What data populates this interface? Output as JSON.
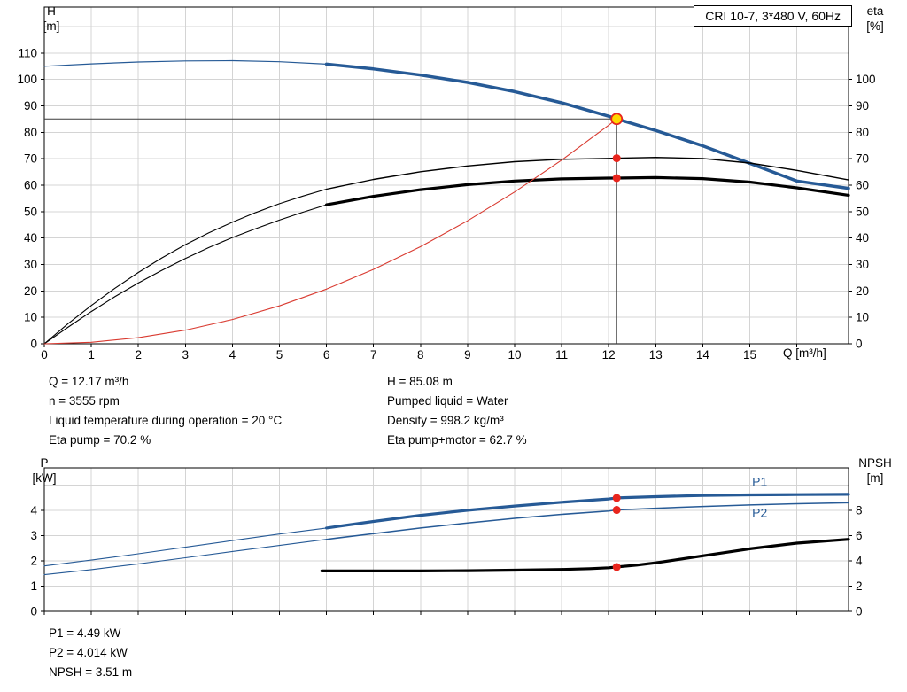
{
  "title_box": {
    "label": "CRI 10-7, 3*480 V, 60Hz"
  },
  "colors": {
    "blue": "#265a96",
    "black": "#000000",
    "red": "#e8251d",
    "red_line": "#d93a30",
    "yellow": "#ffd800",
    "grid": "#d4d4d4",
    "crosshair": "#3a3a3a"
  },
  "top_info": {
    "left": [
      "Q = 12.17 m³/h",
      "n = 3555 rpm",
      "Liquid temperature during operation = 20 °C",
      "Eta pump = 70.2 %"
    ],
    "right": [
      "H = 85.08 m",
      "Pumped liquid = Water",
      "Density = 998.2 kg/m³",
      "Eta pump+motor = 62.7 %"
    ]
  },
  "bottom_info": [
    "P1 = 4.49 kW",
    "P2 = 4.014 kW",
    "NPSH = 3.51 m"
  ],
  "chart_data": [
    {
      "name": "qh-eta-chart",
      "type": "line",
      "title": "CRI 10-7, 3*480 V, 60Hz",
      "x_axis": {
        "label": "Q [m³/h]",
        "min": 0,
        "max": 17.1,
        "ticks": [
          0,
          1,
          2,
          3,
          4,
          5,
          6,
          7,
          8,
          9,
          10,
          11,
          12,
          13,
          14,
          15
        ],
        "grid": [
          1,
          2,
          3,
          4,
          5,
          6,
          7,
          8,
          9,
          10,
          11,
          12,
          13,
          14,
          15,
          16
        ]
      },
      "y_left": {
        "label": "H [m]",
        "label_lines": [
          "H",
          "[m]"
        ],
        "min": 0,
        "max": 127.4,
        "ticks": [
          0,
          10,
          20,
          30,
          40,
          50,
          60,
          70,
          80,
          90,
          100,
          110
        ],
        "grid": [
          10,
          20,
          30,
          40,
          50,
          60,
          70,
          80,
          90,
          100,
          110,
          120
        ]
      },
      "y_right": {
        "label": "eta [%]",
        "label_lines": [
          "eta",
          "[%]"
        ],
        "min": 0,
        "max": 127.4,
        "ticks": [
          0,
          10,
          20,
          30,
          40,
          50,
          60,
          70,
          80,
          90,
          100
        ]
      },
      "series": [
        {
          "name": "pump-curve-low-flow",
          "color": "blue",
          "width": 1.2,
          "axis": "left",
          "x": [
            0,
            1,
            2,
            3,
            4,
            5,
            6
          ],
          "y": [
            105,
            105.9,
            106.6,
            107,
            107.1,
            106.7,
            105.8
          ]
        },
        {
          "name": "pump-curve",
          "color": "blue",
          "width": 3.5,
          "axis": "left",
          "x": [
            6,
            7,
            8,
            9,
            10,
            11,
            12,
            12.17,
            13,
            14,
            15,
            16,
            17.1
          ],
          "y": [
            105.8,
            104,
            101.7,
            98.9,
            95.4,
            91.2,
            86.1,
            85.08,
            80.7,
            74.9,
            68.3,
            61.6,
            58.8
          ]
        },
        {
          "name": "eta-pump-curve-low-flow",
          "color": "black",
          "width": 1.1,
          "axis": "right",
          "x": [
            0,
            0.5,
            1,
            1.5,
            2,
            2.5,
            3,
            3.5,
            4,
            4.5,
            5,
            5.5,
            6
          ],
          "y": [
            0,
            7.5,
            14.5,
            21,
            27,
            32.5,
            37.5,
            42,
            46,
            49.7,
            53,
            55.9,
            58.5
          ]
        },
        {
          "name": "eta-pump-curve",
          "color": "black",
          "width": 1.4,
          "axis": "right",
          "x": [
            6,
            7,
            8,
            9,
            10,
            11,
            12,
            12.17,
            13,
            14,
            15,
            16,
            17.1
          ],
          "y": [
            58.5,
            62.2,
            65.1,
            67.3,
            68.9,
            69.8,
            70.15,
            70.2,
            70.5,
            70.1,
            68.4,
            65.6,
            62
          ]
        },
        {
          "name": "eta-total-curve-low-flow",
          "color": "black",
          "width": 1.1,
          "axis": "right",
          "x": [
            0,
            0.5,
            1,
            1.5,
            2,
            2.5,
            3,
            3.5,
            4,
            4.5,
            5,
            5.5,
            6
          ],
          "y": [
            0,
            6.2,
            12.2,
            17.8,
            23,
            27.8,
            32.3,
            36.4,
            40.2,
            43.6,
            46.8,
            49.8,
            52.6
          ]
        },
        {
          "name": "eta-total-curve",
          "color": "black",
          "width": 3.2,
          "axis": "right",
          "x": [
            6,
            7,
            8,
            9,
            10,
            11,
            12,
            12.17,
            13,
            14,
            15,
            16,
            17.1
          ],
          "y": [
            52.6,
            55.8,
            58.3,
            60.2,
            61.6,
            62.4,
            62.68,
            62.7,
            62.9,
            62.5,
            61.2,
            59,
            56.2
          ]
        },
        {
          "name": "system-curve",
          "color": "red_line",
          "width": 1.1,
          "axis": "left",
          "x": [
            0,
            1,
            2,
            3,
            4,
            5,
            6,
            7,
            8,
            9,
            10,
            11,
            12,
            12.17
          ],
          "y": [
            0,
            0.57,
            2.3,
            5.17,
            9.19,
            14.36,
            20.68,
            28.15,
            36.76,
            46.53,
            57.44,
            69.51,
            82.72,
            85.08
          ]
        }
      ],
      "crosshair": {
        "q": 12.17,
        "h": 85.08,
        "v_from": 0,
        "v_to": 87.5
      },
      "markers": [
        {
          "name": "eta-pump-duty-marker",
          "q": 12.17,
          "v": 70.2,
          "axis": "right",
          "r": 4.5,
          "fill": "red"
        },
        {
          "name": "eta-total-duty-marker",
          "q": 12.17,
          "v": 62.7,
          "axis": "right",
          "r": 4.5,
          "fill": "red"
        },
        {
          "name": "duty-point",
          "q": 12.17,
          "v": 85.08,
          "axis": "left",
          "r": 6,
          "fill": "yellow",
          "stroke": "red"
        }
      ],
      "curve_labels": []
    },
    {
      "name": "power-npsh-chart",
      "type": "line",
      "x_axis": {
        "label": "",
        "min": 0,
        "max": 17.1,
        "ticks": [],
        "grid": [
          1,
          2,
          3,
          4,
          5,
          6,
          7,
          8,
          9,
          10,
          11,
          12,
          13,
          14,
          15,
          16
        ]
      },
      "y_left": {
        "label": "P [kW]",
        "label_lines": [
          "P",
          "[kW]"
        ],
        "min": 0,
        "max": 5.68,
        "ticks": [
          0,
          1,
          2,
          3,
          4
        ],
        "grid": [
          1,
          2,
          3,
          4,
          5
        ]
      },
      "y_right": {
        "label": "NPSH [m]",
        "label_lines": [
          "NPSH",
          "[m]"
        ],
        "min": 0,
        "max": 11.36,
        "ticks": [
          0,
          2,
          4,
          6,
          8
        ]
      },
      "series": [
        {
          "name": "p1-curve-low-flow",
          "color": "blue",
          "width": 1.1,
          "axis": "left",
          "x": [
            0,
            1,
            2,
            3,
            4,
            5,
            6
          ],
          "y": [
            1.8,
            2.03,
            2.28,
            2.54,
            2.8,
            3.06,
            3.3
          ]
        },
        {
          "name": "p1-curve",
          "color": "blue",
          "width": 3.2,
          "axis": "left",
          "x": [
            6,
            7,
            8,
            9,
            10,
            11,
            12,
            12.17,
            13,
            14,
            15,
            16,
            17.1
          ],
          "y": [
            3.3,
            3.56,
            3.8,
            4.0,
            4.17,
            4.32,
            4.45,
            4.49,
            4.54,
            4.59,
            4.61,
            4.62,
            4.63
          ]
        },
        {
          "name": "p2-curve-low-flow",
          "color": "blue",
          "width": 1.1,
          "axis": "left",
          "x": [
            0,
            1,
            2,
            3,
            4,
            5,
            6
          ],
          "y": [
            1.45,
            1.65,
            1.88,
            2.12,
            2.37,
            2.61,
            2.85
          ]
        },
        {
          "name": "p2-curve",
          "color": "blue",
          "width": 1.5,
          "axis": "left",
          "x": [
            6,
            7,
            8,
            9,
            10,
            11,
            12,
            12.17,
            13,
            14,
            15,
            16,
            17.1
          ],
          "y": [
            2.85,
            3.08,
            3.3,
            3.5,
            3.68,
            3.84,
            3.97,
            4.014,
            4.08,
            4.15,
            4.21,
            4.26,
            4.3
          ]
        },
        {
          "name": "npsh-curve",
          "color": "black",
          "width": 3.2,
          "axis": "right",
          "x": [
            5.9,
            7,
            8,
            9,
            10,
            11,
            11.6,
            12,
            12.17,
            12.6,
            13,
            14,
            15,
            16,
            17.1
          ],
          "y": [
            3.2,
            3.2,
            3.2,
            3.22,
            3.26,
            3.32,
            3.38,
            3.45,
            3.51,
            3.66,
            3.84,
            4.4,
            4.95,
            5.4,
            5.7
          ]
        }
      ],
      "markers": [
        {
          "name": "p1-duty-marker",
          "q": 12.17,
          "v": 4.49,
          "axis": "left",
          "r": 4.5,
          "fill": "red"
        },
        {
          "name": "p2-duty-marker",
          "q": 12.17,
          "v": 4.014,
          "axis": "left",
          "r": 4.5,
          "fill": "red"
        },
        {
          "name": "npsh-duty-marker",
          "q": 12.17,
          "v": 3.51,
          "axis": "right",
          "r": 4.5,
          "fill": "red"
        }
      ],
      "curve_labels": [
        {
          "text": "P1",
          "q": 15.05,
          "v": 4.97
        },
        {
          "text": "P2",
          "q": 15.05,
          "v": 3.74
        }
      ]
    }
  ]
}
